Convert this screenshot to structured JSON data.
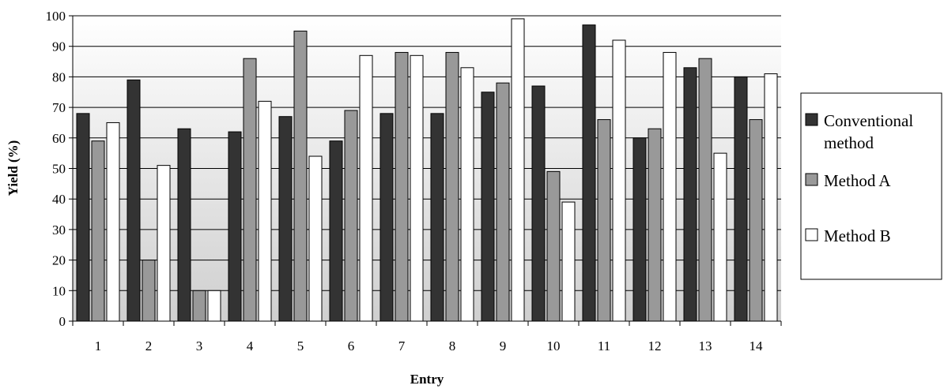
{
  "chart_data": {
    "type": "bar",
    "xlabel": "Entry",
    "ylabel": "Yield (%)",
    "ylim": [
      0,
      100
    ],
    "yticks": [
      0,
      10,
      20,
      30,
      40,
      50,
      60,
      70,
      80,
      90,
      100
    ],
    "grid": true,
    "legend_position": "right",
    "categories": [
      "1",
      "2",
      "3",
      "4",
      "5",
      "6",
      "7",
      "8",
      "9",
      "10",
      "11",
      "12",
      "13",
      "14"
    ],
    "series": [
      {
        "name_lines": [
          "Conventional",
          "method"
        ],
        "color": "#333333",
        "values": [
          68,
          79,
          63,
          62,
          67,
          59,
          68,
          68,
          75,
          77,
          97,
          60,
          83,
          80
        ]
      },
      {
        "name_lines": [
          "Method A"
        ],
        "color": "#999999",
        "values": [
          59,
          20,
          10,
          86,
          95,
          69,
          88,
          88,
          78,
          49,
          66,
          63,
          86,
          66
        ]
      },
      {
        "name_lines": [
          "Method B"
        ],
        "color": "#ffffff",
        "values": [
          65,
          51,
          10,
          72,
          54,
          87,
          87,
          83,
          99,
          39,
          92,
          88,
          55,
          81
        ]
      }
    ]
  }
}
